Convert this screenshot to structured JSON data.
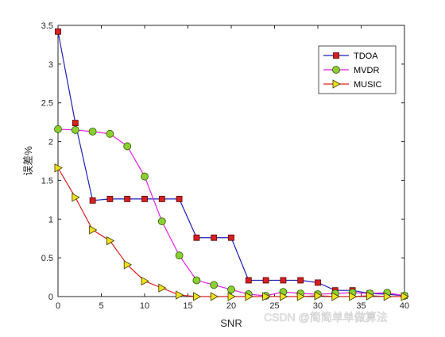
{
  "chart_data": {
    "type": "line",
    "title": "",
    "xlabel": "SNR",
    "ylabel": "误差%",
    "xlim": [
      0,
      40
    ],
    "ylim": [
      0,
      3.5
    ],
    "xticks": [
      0,
      5,
      10,
      15,
      20,
      25,
      30,
      35,
      40
    ],
    "yticks": [
      0,
      0.5,
      1,
      1.5,
      2,
      2.5,
      3,
      3.5
    ],
    "xtick_labels": [
      "0",
      "5",
      "10",
      "15",
      "20",
      "25",
      "30",
      "35",
      "40"
    ],
    "ytick_labels": [
      "0",
      "0.5",
      "1",
      "1.5",
      "2",
      "2.5",
      "3",
      "3.5"
    ],
    "grid": false,
    "legend_position": "top-right",
    "x": [
      0,
      2,
      4,
      6,
      8,
      10,
      12,
      14,
      16,
      18,
      20,
      22,
      24,
      26,
      28,
      30,
      32,
      34,
      36,
      38,
      40
    ],
    "series": [
      {
        "name": "TDOA",
        "color": "#1f1fb4",
        "marker": "square",
        "marker_color": "#d62020",
        "values": [
          3.42,
          2.24,
          1.24,
          1.26,
          1.26,
          1.26,
          1.26,
          1.26,
          0.76,
          0.76,
          0.76,
          0.21,
          0.21,
          0.21,
          0.21,
          0.18,
          0.08,
          0.08,
          0.04,
          0.03,
          0.01
        ]
      },
      {
        "name": "MVDR",
        "color": "#e020e0",
        "marker": "circle",
        "marker_color": "#8ccf32",
        "values": [
          2.16,
          2.15,
          2.13,
          2.1,
          1.94,
          1.55,
          0.97,
          0.53,
          0.21,
          0.15,
          0.09,
          0.03,
          0.01,
          0.06,
          0.04,
          0.03,
          0.04,
          0.05,
          0.04,
          0.05,
          0.01
        ]
      },
      {
        "name": "MUSIC",
        "color": "#d62020",
        "marker": "triangle-right",
        "marker_color": "#f0e020",
        "values": [
          1.66,
          1.28,
          0.86,
          0.72,
          0.41,
          0.2,
          0.11,
          0.02,
          0.0,
          0.0,
          0.0,
          0.0,
          0.0,
          0.0,
          0.0,
          0.01,
          0.0,
          0.0,
          0.01,
          0.0,
          0.0
        ]
      }
    ]
  },
  "watermark": "CSDN @简简单单做算法"
}
